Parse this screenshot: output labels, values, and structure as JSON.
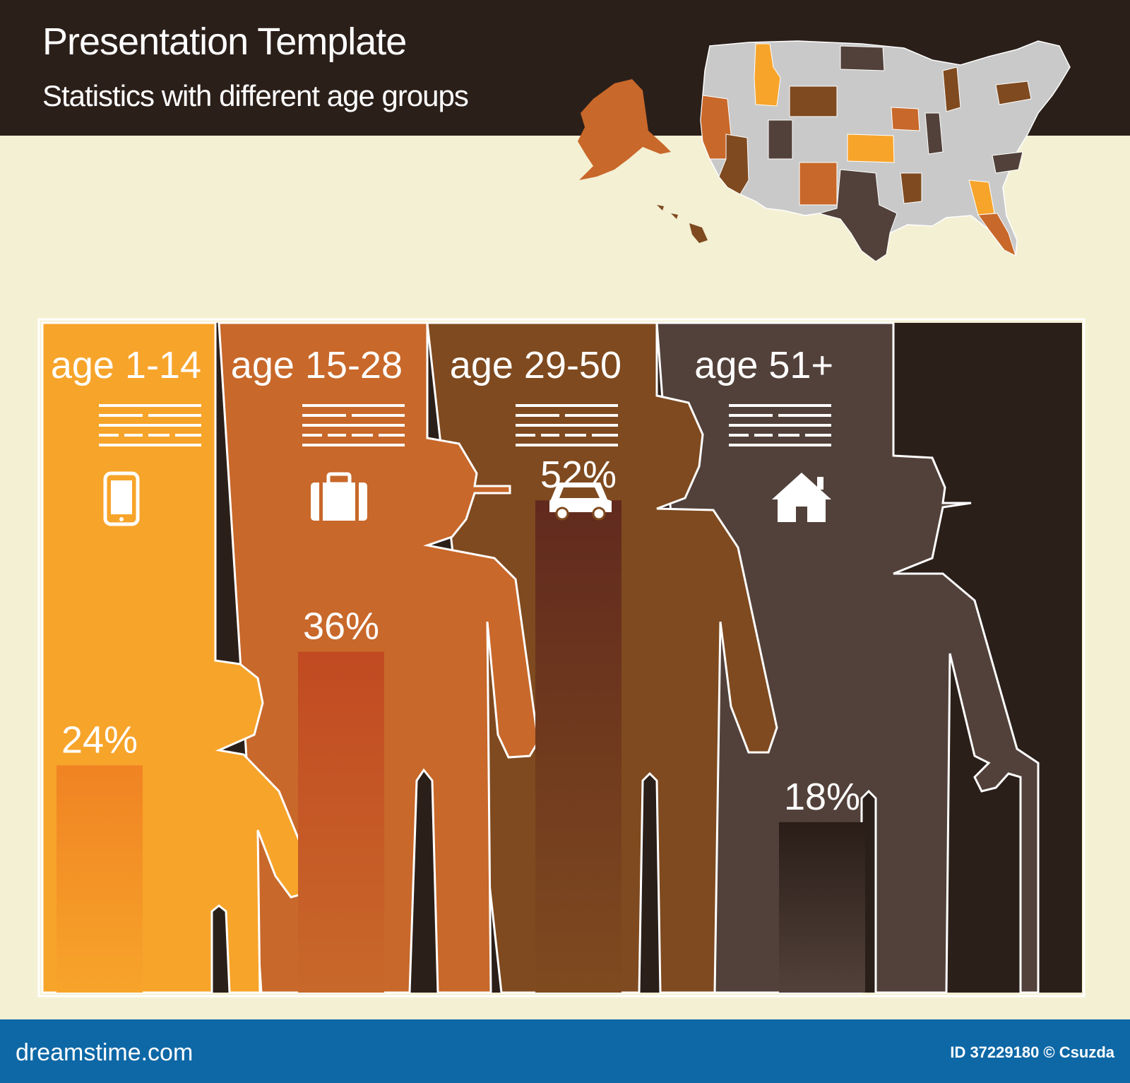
{
  "header": {
    "title": "Presentation Template",
    "subtitle": "Statistics with different age groups"
  },
  "chart_data": {
    "type": "bar",
    "categories": [
      "age 1-14",
      "age 15-28",
      "age 29-50",
      "age 51+"
    ],
    "values": [
      24,
      36,
      52,
      18
    ],
    "value_labels": [
      "24%",
      "36%",
      "52%",
      "18%"
    ],
    "icons": [
      "smartphone-icon",
      "briefcase-icon",
      "car-icon",
      "house-icon"
    ],
    "panel_colors": [
      "#f7a42a",
      "#c8682a",
      "#7f4a1f",
      "#52413a"
    ],
    "bar_colors": [
      "#f08323",
      "#c24a22",
      "#6a3418",
      "#2a1d18"
    ],
    "ylim": [
      0,
      100
    ],
    "grid": false,
    "legend": "none"
  },
  "map": {
    "colors": [
      "#c9c9c9",
      "#f7a42a",
      "#c8682a",
      "#7f4a1f",
      "#52413a"
    ]
  },
  "footer": {
    "brand": "dreamstime.com",
    "id_text": "ID 37229180 © Csuzda"
  }
}
